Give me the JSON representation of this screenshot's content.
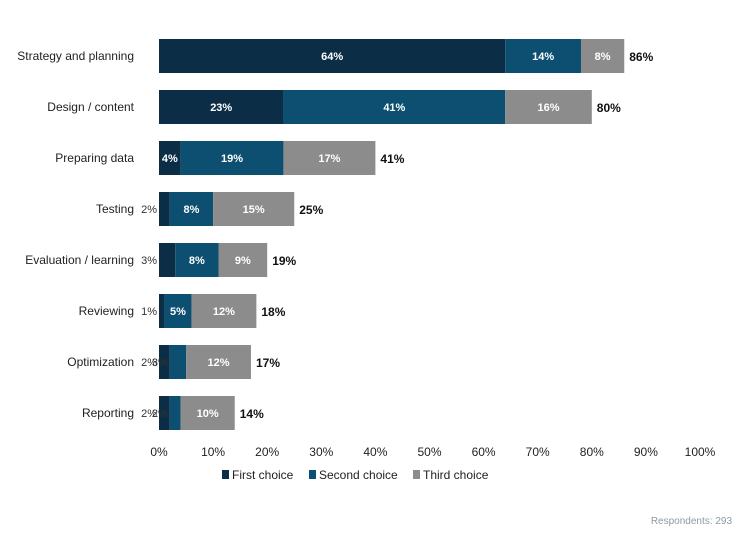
{
  "chart_data": {
    "type": "bar",
    "orientation": "horizontal",
    "stacked": true,
    "categories": [
      "Strategy and planning",
      "Design / content",
      "Preparing data",
      "Testing",
      "Evaluation / learning",
      "Reviewing",
      "Optimization",
      "Reporting"
    ],
    "series": [
      {
        "name": "First choice",
        "color": "#0b2d45",
        "values": [
          64,
          23,
          4,
          2,
          3,
          1,
          2,
          2
        ]
      },
      {
        "name": "Second choice",
        "color": "#0d4f70",
        "values": [
          14,
          41,
          19,
          8,
          8,
          5,
          3,
          2
        ]
      },
      {
        "name": "Third choice",
        "color": "#8c8c8c",
        "values": [
          8,
          16,
          17,
          15,
          9,
          12,
          12,
          10
        ]
      }
    ],
    "segment_labels": [
      [
        "64%",
        "14%",
        "8%"
      ],
      [
        "23%",
        "41%",
        "16%"
      ],
      [
        "4%",
        "19%",
        "17%"
      ],
      [
        "2%",
        "8%",
        "15%"
      ],
      [
        "3%",
        "8%",
        "9%"
      ],
      [
        "1%",
        "5%",
        "12%"
      ],
      [
        "2%",
        "3%",
        "12%"
      ],
      [
        "2%",
        "2%",
        "10%"
      ]
    ],
    "totals": [
      "86%",
      "80%",
      "41%",
      "25%",
      "19%",
      "18%",
      "17%",
      "14%"
    ],
    "xlim": [
      0,
      100
    ],
    "x_ticks": [
      "0%",
      "10%",
      "20%",
      "30%",
      "40%",
      "50%",
      "60%",
      "70%",
      "80%",
      "90%",
      "100%"
    ],
    "legend_position": "bottom",
    "grid": false,
    "footnote": "Respondents: 293"
  }
}
